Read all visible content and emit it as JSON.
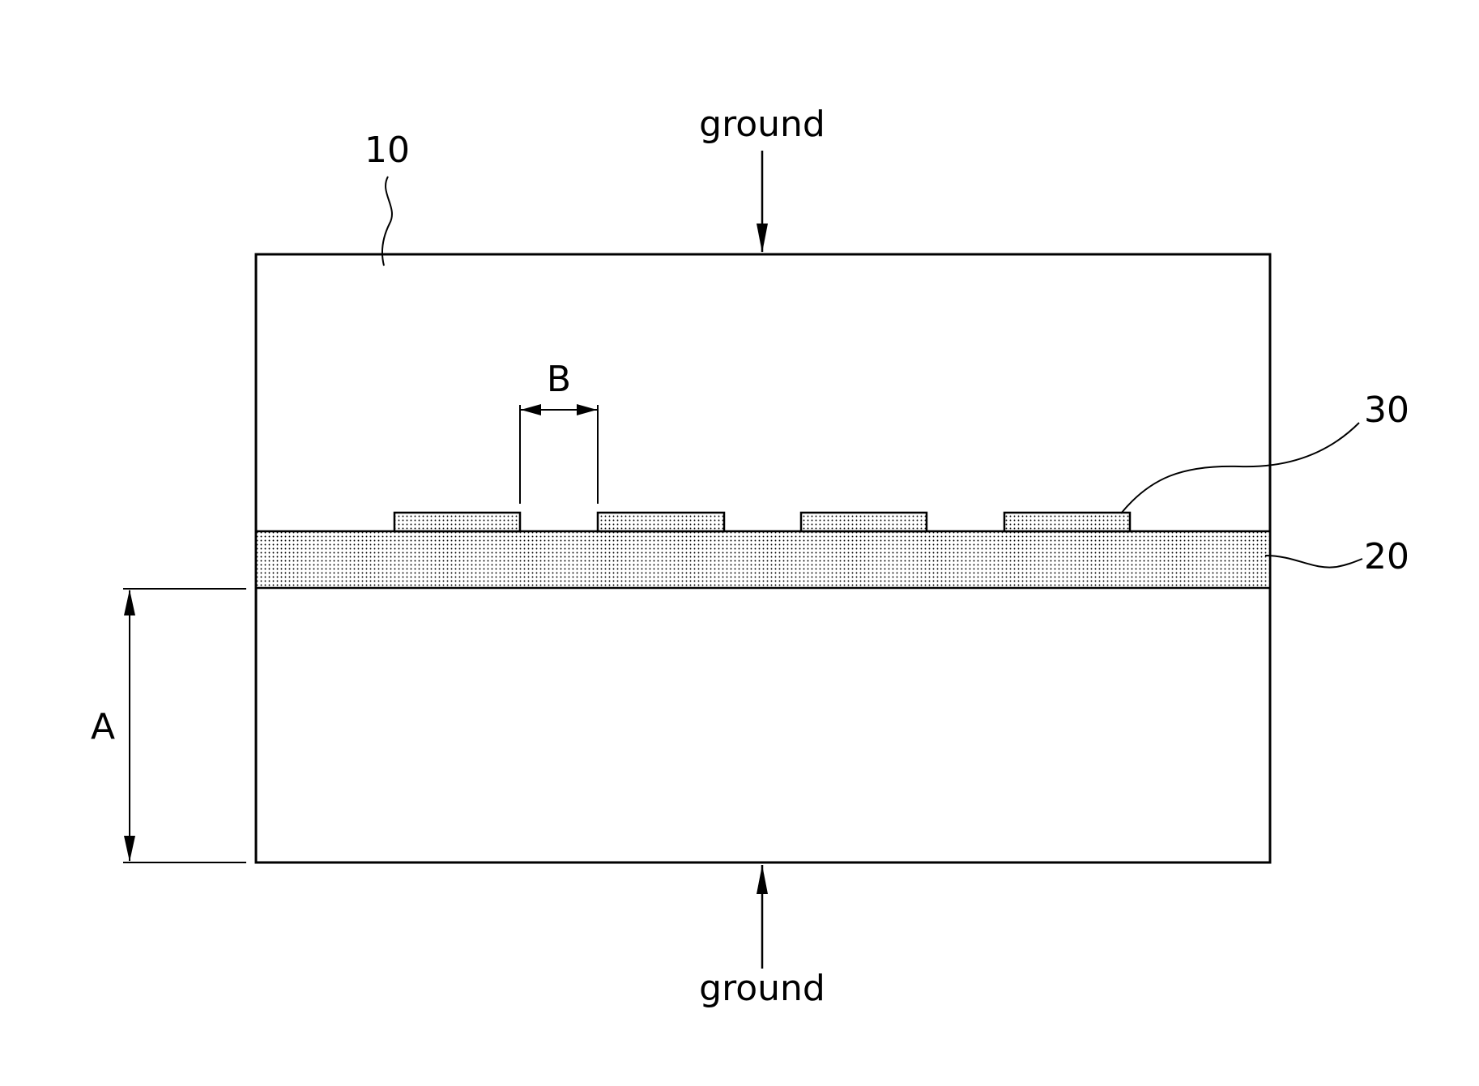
{
  "diagram": {
    "labels": {
      "ground_top": "ground",
      "ground_bottom": "ground",
      "ref_10": "10",
      "ref_20": "20",
      "ref_30": "30",
      "dim_a": "A",
      "dim_b": "B"
    },
    "colors": {
      "stroke": "#000000",
      "background": "#ffffff",
      "dot_fill": "#000000"
    },
    "electrode_count": 4
  }
}
